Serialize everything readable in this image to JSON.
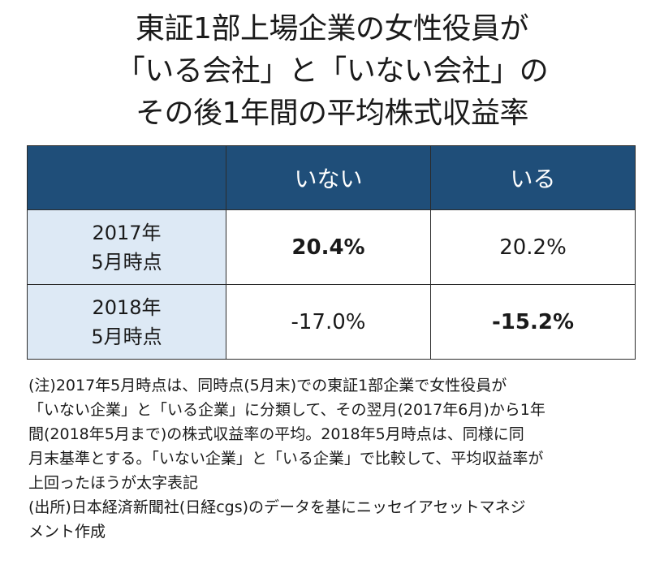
{
  "title": {
    "line1": "東証1部上場企業の女性役員が",
    "line2": "「いる会社」と「いない会社」の",
    "line3": "その後1年間の平均株式収益率"
  },
  "table": {
    "headers": [
      "",
      "いない",
      "いる"
    ],
    "rows": [
      {
        "label_line1": "2017年",
        "label_line2": "5月時点",
        "cells": [
          {
            "value": "20.4%",
            "bold": true
          },
          {
            "value": "20.2%",
            "bold": false
          }
        ]
      },
      {
        "label_line1": "2018年",
        "label_line2": "5月時点",
        "cells": [
          {
            "value": "-17.0%",
            "bold": false
          },
          {
            "value": "-15.2%",
            "bold": true
          }
        ]
      }
    ]
  },
  "notes": {
    "lines": [
      "(注)2017年5月時点は、同時点(5月末)での東証1部企業で女性役員が",
      "「いない企業」と「いる企業」に分類して、その翌月(2017年6月)から1年",
      "間(2018年5月まで)の株式収益率の平均。2018年5月時点は、同様に同",
      "月末基準とする。「いない企業」と「いる企業」で比較して、平均収益率が",
      "上回ったほうが太字表記",
      "(出所)日本経済新聞社(日経cgs)のデータを基にニッセイアセットマネジ",
      "メント作成"
    ]
  },
  "colors": {
    "header_bg": "#1f4e79",
    "row_label_bg": "#dde9f5",
    "border": "#2b2b2b"
  }
}
